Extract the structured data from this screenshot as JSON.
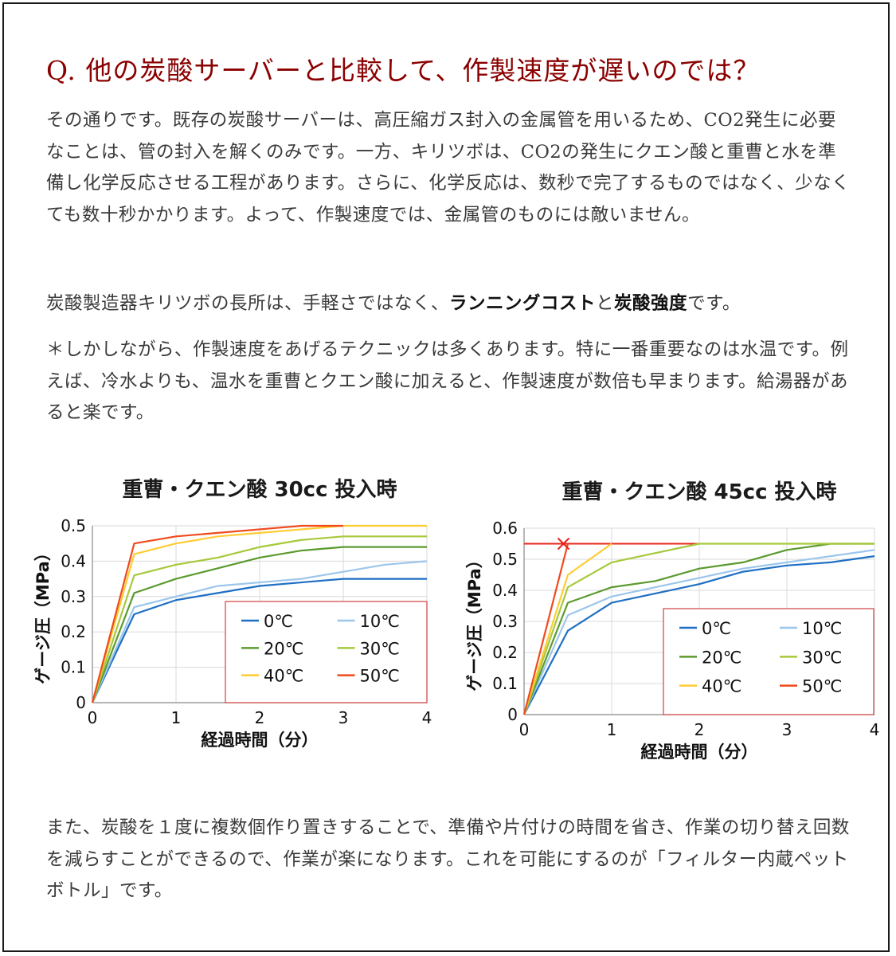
{
  "heading": "Q. 他の炭酸サーバーと比較して、作製速度が遅いのでは？",
  "paragraphs": {
    "p1": "その通りです。既存の炭酸サーバーは、高圧縮ガス封入の金属管を用いるため、CO2発生に必要なことは、管の封入を解くのみです。一方、キリツボは、CO2の発生にクエン酸と重曹と水を準備し化学反応させる工程があります。さらに、化学反応は、数秒で完了するものではなく、少なくても数十秒かかります。よって、作製速度では、金属管のものには敵いません。",
    "p2_start": "炭酸製造器キリツボの長所は、手軽さではなく、",
    "p2_bold1": "ランニングコスト",
    "p2_mid": "と",
    "p2_bold2": "炭酸強度",
    "p2_end": "です。",
    "p3": "＊しかしながら、作製速度をあげるテクニックは多くあります。特に一番重要なのは水温です。例えば、冷水よりも、温水を重曹とクエン酸に加えると、作製速度が数倍も早まります。給湯器があると楽です。",
    "p4": "また、炭酸を１度に複数個作り置きすることで、準備や片付けの時間を省き、作業の切り替え回数を減らすことができるので、作業が楽になります。これを可能にするのが「フィルター内蔵ペットボトル」です。"
  },
  "colors": {
    "heading": "#8b0000",
    "grid": "#d9d9d9",
    "legend_border": "#d04040",
    "series": [
      "#1f6fc4",
      "#9cc6ec",
      "#5b9a2e",
      "#a6c93a",
      "#ffcc33",
      "#f04a1c"
    ]
  },
  "chart_data": [
    {
      "type": "line",
      "title": "重曹・クエン酸 30cc 投入時",
      "xlabel": "経過時間（分）",
      "ylabel": "ゲージ圧（MPa）",
      "xlim": [
        0,
        4
      ],
      "ylim": [
        0,
        0.5
      ],
      "xticks": [
        "0",
        "1",
        "2",
        "3",
        "4"
      ],
      "yticks": [
        "0",
        "0.1",
        "0.2",
        "0.3",
        "0.4",
        "0.5"
      ],
      "grid": true,
      "legend_position": "bottom-right",
      "x": [
        0,
        0.5,
        1,
        1.5,
        2,
        2.5,
        3,
        3.5,
        4
      ],
      "series": [
        {
          "name": "0℃",
          "values": [
            0,
            0.25,
            0.29,
            0.31,
            0.33,
            0.34,
            0.35,
            0.35,
            0.35
          ]
        },
        {
          "name": "10℃",
          "values": [
            0,
            0.27,
            0.3,
            0.33,
            0.34,
            0.35,
            0.37,
            0.39,
            0.4
          ]
        },
        {
          "name": "20℃",
          "values": [
            0,
            0.31,
            0.35,
            0.38,
            0.41,
            0.43,
            0.44,
            0.44,
            0.44
          ]
        },
        {
          "name": "30℃",
          "values": [
            0,
            0.36,
            0.39,
            0.41,
            0.44,
            0.46,
            0.47,
            0.47,
            0.47
          ]
        },
        {
          "name": "40℃",
          "values": [
            0,
            0.42,
            0.45,
            0.47,
            0.48,
            0.49,
            0.5,
            0.5,
            0.5
          ]
        },
        {
          "name": "50℃",
          "values": [
            0,
            0.45,
            0.47,
            0.48,
            0.49,
            0.5,
            0.5,
            null,
            null
          ]
        }
      ]
    },
    {
      "type": "line",
      "title": "重曹・クエン酸 45cc 投入時",
      "xlabel": "経過時間（分）",
      "ylabel": "ゲージ圧（MPa）",
      "xlim": [
        0,
        4
      ],
      "ylim": [
        0,
        0.6
      ],
      "xticks": [
        "0",
        "1",
        "2",
        "3",
        "4"
      ],
      "yticks": [
        "0",
        "0.1",
        "0.2",
        "0.3",
        "0.4",
        "0.5",
        "0.6"
      ],
      "grid": true,
      "legend_position": "bottom-right",
      "reference_line": 0.55,
      "marker": {
        "x": 0.45,
        "y": 0.55,
        "symbol": "×"
      },
      "x": [
        0,
        0.5,
        1,
        1.5,
        2,
        2.5,
        3,
        3.5,
        4
      ],
      "series": [
        {
          "name": "0℃",
          "values": [
            0,
            0.27,
            0.36,
            0.39,
            0.42,
            0.46,
            0.48,
            0.49,
            0.51
          ]
        },
        {
          "name": "10℃",
          "values": [
            0,
            0.32,
            0.38,
            0.41,
            0.44,
            0.47,
            0.49,
            0.51,
            0.53
          ]
        },
        {
          "name": "20℃",
          "values": [
            0,
            0.36,
            0.41,
            0.43,
            0.47,
            0.49,
            0.53,
            0.55,
            0.55
          ]
        },
        {
          "name": "30℃",
          "values": [
            0,
            0.41,
            0.49,
            0.52,
            0.55,
            0.55,
            0.55,
            0.55,
            0.55
          ]
        },
        {
          "name": "40℃",
          "values": [
            0,
            0.45,
            0.55,
            null,
            null,
            null,
            null,
            null,
            null
          ]
        },
        {
          "name": "50℃",
          "values": [
            0,
            0.55,
            null,
            null,
            null,
            null,
            null,
            null,
            null
          ]
        }
      ]
    }
  ]
}
